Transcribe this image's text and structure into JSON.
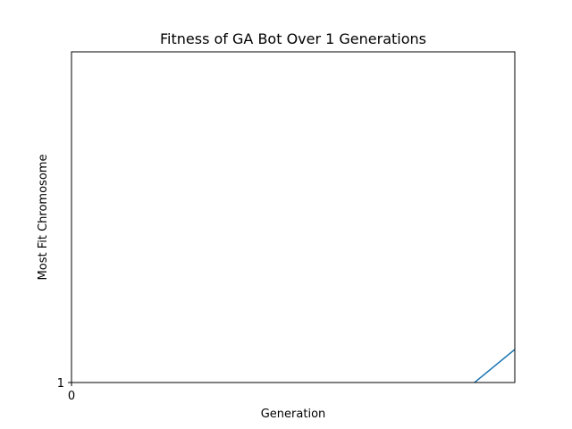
{
  "chart_data": {
    "type": "line",
    "title": "Fitness of GA Bot Over 1 Generations",
    "xlabel": "Generation",
    "ylabel": "Most Fit Chromosome",
    "xlim": [
      0,
      1.1
    ],
    "ylim": [
      1,
      1.82
    ],
    "x_ticks": [
      {
        "value": 0,
        "label": "0"
      }
    ],
    "y_ticks": [
      {
        "value": 1,
        "label": "1"
      }
    ],
    "grid": false,
    "series": [
      {
        "color": "#1f77b4",
        "x": [
          1,
          1.1
        ],
        "y": [
          1,
          1.082
        ]
      }
    ]
  }
}
